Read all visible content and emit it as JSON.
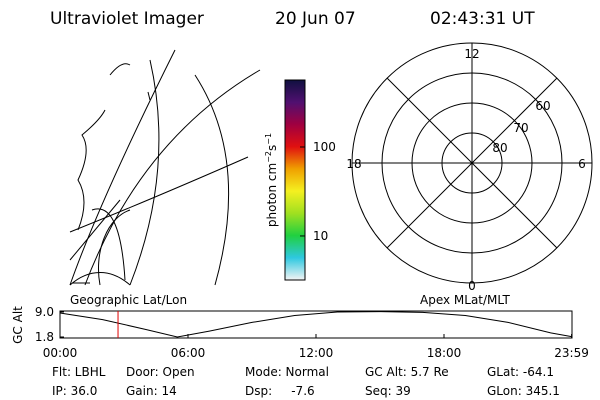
{
  "header": {
    "title": "Ultraviolet Imager",
    "date": "20 Jun 07",
    "time": "02:43:31 UT"
  },
  "colorbar": {
    "unit": [
      "photon cm",
      "−2",
      "s",
      "−1"
    ],
    "log": true,
    "range": [
      3.2,
      566
    ],
    "ticks": [
      10,
      100
    ],
    "colors": [
      "#f4f4f4",
      "#2ec8e0",
      "#20d040",
      "#a0e020",
      "#f4f020",
      "#f0a000",
      "#e01010",
      "#a00040",
      "#501070",
      "#101040"
    ]
  },
  "panels": {
    "left_label": "Geographic Lat/Lon",
    "right_label": "Apex MLat/MLT"
  },
  "polar": {
    "mlt_labels": [
      "12",
      "18",
      "6",
      "0"
    ],
    "lat_labels": [
      "80",
      "70",
      "60"
    ]
  },
  "altitude_plot": {
    "ylabel": "GC Alt",
    "xlim": [
      0,
      24
    ],
    "ylim": [
      1.8,
      9.0
    ],
    "yticks": [
      {
        "value": 9.0,
        "label": "9.0"
      },
      {
        "value": 1.8,
        "label": "1.8"
      }
    ],
    "xticks": [
      {
        "value": 0,
        "label": "00:00"
      },
      {
        "value": 6,
        "label": "06:00"
      },
      {
        "value": 12,
        "label": "12:00"
      },
      {
        "value": 18,
        "label": "18:00"
      },
      {
        "value": 23.98,
        "label": "23:59"
      }
    ],
    "x": [
      0,
      2,
      4,
      5.5,
      7,
      9,
      11,
      13,
      15,
      17,
      19,
      21,
      23,
      23.98
    ],
    "values": [
      8.7,
      6.8,
      4.0,
      1.8,
      3.5,
      6.0,
      8.0,
      9.0,
      9.1,
      8.9,
      8.0,
      6.0,
      3.0,
      1.9
    ],
    "current_time": 2.72,
    "current_color": "#e00000"
  },
  "footer": {
    "rows": [
      [
        "Flt: LBHL",
        "Door: Open",
        "Mode: Normal",
        "GC Alt: 5.7 Re",
        "GLat: -64.1"
      ],
      [
        "IP: 36.0",
        "Gain: 14",
        "Dsp:     -7.6",
        "Seq: 39",
        "GLon: 345.1"
      ]
    ]
  }
}
